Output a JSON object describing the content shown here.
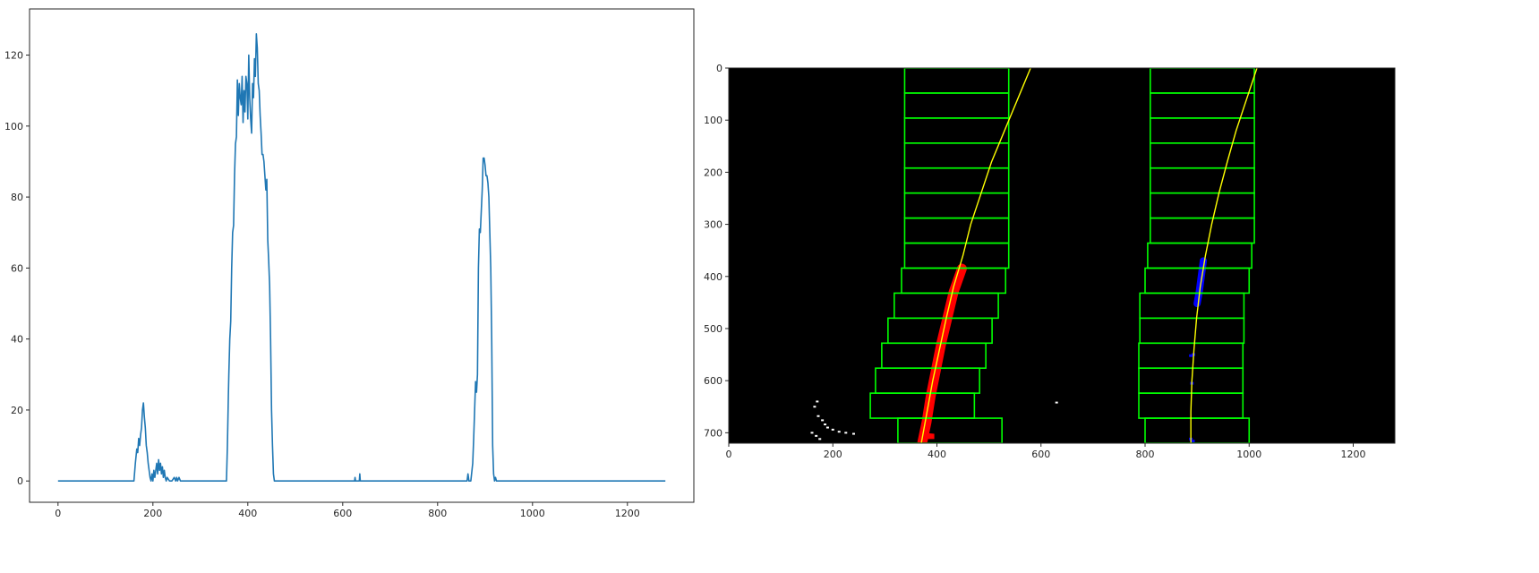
{
  "chart_data": [
    {
      "type": "line",
      "title": "",
      "xlabel": "",
      "ylabel": "",
      "xlim": [
        -60,
        1340
      ],
      "ylim": [
        -6,
        133
      ],
      "xticks": [
        0,
        200,
        400,
        600,
        800,
        1000,
        1200
      ],
      "yticks": [
        0,
        20,
        40,
        60,
        80,
        100,
        120
      ],
      "grid": false,
      "line_color": "#1f77b4",
      "series": [
        {
          "x": [
            0,
            160,
            163,
            166,
            168,
            170,
            172,
            174,
            176,
            178,
            180,
            182,
            184,
            186,
            188,
            190,
            192,
            194,
            196,
            198,
            200,
            202,
            204,
            206,
            208,
            210,
            212,
            214,
            216,
            218,
            220,
            222,
            224,
            226,
            228,
            230,
            235,
            240,
            245,
            248,
            250,
            252,
            255,
            258,
            260,
            300,
            355,
            357,
            359,
            360,
            362,
            364,
            366,
            368,
            370,
            372,
            374,
            376,
            378,
            380,
            382,
            384,
            386,
            388,
            390,
            392,
            394,
            396,
            398,
            400,
            402,
            404,
            406,
            408,
            410,
            412,
            414,
            416,
            418,
            420,
            422,
            424,
            426,
            428,
            430,
            432,
            434,
            436,
            438,
            440,
            442,
            444,
            446,
            448,
            450,
            452,
            454,
            456,
            500,
            600,
            625,
            626,
            627,
            628,
            635,
            636,
            637,
            638,
            700,
            800,
            860,
            862,
            864,
            866,
            870,
            874,
            876,
            878,
            880,
            882,
            884,
            886,
            888,
            890,
            892,
            894,
            896,
            898,
            900,
            902,
            904,
            906,
            908,
            910,
            912,
            914,
            916,
            918,
            920,
            922,
            924,
            926,
            928,
            1000,
            1100,
            1200,
            1280
          ],
          "y": [
            0,
            0,
            5,
            9,
            8,
            12,
            10,
            13,
            15,
            20,
            22,
            18,
            15,
            10,
            8,
            5,
            3,
            1,
            0,
            2,
            0,
            3,
            1,
            3,
            5,
            2,
            6,
            3,
            5,
            2,
            4,
            1,
            3,
            1,
            0,
            1,
            0,
            0,
            1,
            0,
            1,
            0,
            1,
            0,
            0,
            0,
            0,
            10,
            24,
            30,
            40,
            45,
            60,
            70,
            72,
            86,
            95,
            97,
            113,
            103,
            112,
            108,
            106,
            114,
            101,
            110,
            104,
            114,
            112,
            102,
            120,
            108,
            102,
            98,
            112,
            108,
            119,
            114,
            126,
            122,
            112,
            110,
            103,
            98,
            92,
            92,
            90,
            86,
            82,
            85,
            68,
            62,
            55,
            40,
            20,
            10,
            2,
            0,
            0,
            0,
            0,
            1,
            0,
            0,
            0,
            2,
            0,
            0,
            0,
            0,
            0,
            0,
            2,
            0,
            0,
            5,
            12,
            20,
            28,
            25,
            30,
            60,
            71,
            70,
            76,
            82,
            91,
            91,
            89,
            86,
            86,
            84,
            80,
            70,
            60,
            40,
            10,
            2,
            0,
            1,
            0,
            0,
            0,
            0,
            0,
            0,
            0
          ]
        }
      ]
    },
    {
      "type": "image",
      "title": "",
      "xlabel": "",
      "ylabel": "",
      "xlim": [
        0,
        1280
      ],
      "ylim": [
        720,
        0
      ],
      "xticks": [
        0,
        200,
        400,
        600,
        800,
        1000,
        1200
      ],
      "yticks": [
        0,
        100,
        200,
        300,
        400,
        500,
        600,
        700
      ],
      "background_color": "#000000",
      "window_color": "#00ff00",
      "fit_color": "#ffff00",
      "left_lane_color": "#ff0000",
      "right_lane_color": "#0000ff",
      "left_windows": [
        {
          "x1": 338,
          "x2": 538,
          "y1": 0,
          "y2": 48
        },
        {
          "x1": 338,
          "x2": 538,
          "y1": 48,
          "y2": 96
        },
        {
          "x1": 338,
          "x2": 538,
          "y1": 96,
          "y2": 144
        },
        {
          "x1": 338,
          "x2": 538,
          "y1": 144,
          "y2": 192
        },
        {
          "x1": 338,
          "x2": 538,
          "y1": 192,
          "y2": 240
        },
        {
          "x1": 338,
          "x2": 538,
          "y1": 240,
          "y2": 288
        },
        {
          "x1": 338,
          "x2": 538,
          "y1": 288,
          "y2": 336
        },
        {
          "x1": 338,
          "x2": 538,
          "y1": 336,
          "y2": 384
        },
        {
          "x1": 332,
          "x2": 532,
          "y1": 384,
          "y2": 432
        },
        {
          "x1": 318,
          "x2": 518,
          "y1": 432,
          "y2": 480
        },
        {
          "x1": 306,
          "x2": 506,
          "y1": 480,
          "y2": 528
        },
        {
          "x1": 294,
          "x2": 494,
          "y1": 528,
          "y2": 576
        },
        {
          "x1": 282,
          "x2": 482,
          "y1": 576,
          "y2": 624
        },
        {
          "x1": 272,
          "x2": 472,
          "y1": 624,
          "y2": 672
        },
        {
          "x1": 325,
          "x2": 525,
          "y1": 672,
          "y2": 720
        }
      ],
      "right_windows": [
        {
          "x1": 810,
          "x2": 1010,
          "y1": 0,
          "y2": 48
        },
        {
          "x1": 810,
          "x2": 1010,
          "y1": 48,
          "y2": 96
        },
        {
          "x1": 810,
          "x2": 1010,
          "y1": 96,
          "y2": 144
        },
        {
          "x1": 810,
          "x2": 1010,
          "y1": 144,
          "y2": 192
        },
        {
          "x1": 810,
          "x2": 1010,
          "y1": 192,
          "y2": 240
        },
        {
          "x1": 810,
          "x2": 1010,
          "y1": 240,
          "y2": 288
        },
        {
          "x1": 810,
          "x2": 1010,
          "y1": 288,
          "y2": 336
        },
        {
          "x1": 805,
          "x2": 1005,
          "y1": 336,
          "y2": 384
        },
        {
          "x1": 800,
          "x2": 1000,
          "y1": 384,
          "y2": 432
        },
        {
          "x1": 790,
          "x2": 990,
          "y1": 432,
          "y2": 480
        },
        {
          "x1": 790,
          "x2": 990,
          "y1": 480,
          "y2": 528
        },
        {
          "x1": 788,
          "x2": 988,
          "y1": 528,
          "y2": 576
        },
        {
          "x1": 788,
          "x2": 988,
          "y1": 576,
          "y2": 624
        },
        {
          "x1": 788,
          "x2": 988,
          "y1": 624,
          "y2": 672
        },
        {
          "x1": 800,
          "x2": 1000,
          "y1": 672,
          "y2": 720
        }
      ],
      "left_fit_points": [
        {
          "x": 580,
          "y": 0
        },
        {
          "x": 555,
          "y": 60
        },
        {
          "x": 530,
          "y": 120
        },
        {
          "x": 505,
          "y": 180
        },
        {
          "x": 485,
          "y": 240
        },
        {
          "x": 465,
          "y": 300
        },
        {
          "x": 450,
          "y": 360
        },
        {
          "x": 432,
          "y": 420
        },
        {
          "x": 418,
          "y": 480
        },
        {
          "x": 405,
          "y": 540
        },
        {
          "x": 392,
          "y": 600
        },
        {
          "x": 381,
          "y": 660
        },
        {
          "x": 370,
          "y": 720
        }
      ],
      "right_fit_points": [
        {
          "x": 1015,
          "y": 0
        },
        {
          "x": 995,
          "y": 60
        },
        {
          "x": 975,
          "y": 120
        },
        {
          "x": 958,
          "y": 180
        },
        {
          "x": 942,
          "y": 240
        },
        {
          "x": 928,
          "y": 300
        },
        {
          "x": 916,
          "y": 360
        },
        {
          "x": 906,
          "y": 420
        },
        {
          "x": 899,
          "y": 480
        },
        {
          "x": 894,
          "y": 540
        },
        {
          "x": 890,
          "y": 600
        },
        {
          "x": 888,
          "y": 660
        },
        {
          "x": 888,
          "y": 720
        }
      ],
      "left_lane_points": [
        {
          "x": 448,
          "y": 385
        },
        {
          "x": 432,
          "y": 430
        },
        {
          "x": 420,
          "y": 480
        },
        {
          "x": 408,
          "y": 530
        },
        {
          "x": 398,
          "y": 580
        },
        {
          "x": 388,
          "y": 630
        },
        {
          "x": 380,
          "y": 680
        },
        {
          "x": 372,
          "y": 718
        }
      ],
      "left_lane_blob": [
        {
          "x": 375,
          "y": 700
        },
        {
          "x": 395,
          "y": 702
        },
        {
          "x": 395,
          "y": 712
        },
        {
          "x": 375,
          "y": 712
        }
      ],
      "right_lane_points": [
        {
          "x": 912,
          "y": 370
        },
        {
          "x": 908,
          "y": 400
        },
        {
          "x": 904,
          "y": 430
        },
        {
          "x": 900,
          "y": 452
        }
      ],
      "right_lane_specks": [
        {
          "x": 888,
          "y": 552
        },
        {
          "x": 893,
          "y": 550
        },
        {
          "x": 890,
          "y": 605
        },
        {
          "x": 888,
          "y": 712
        },
        {
          "x": 892,
          "y": 716
        }
      ],
      "noise_points": [
        {
          "x": 170,
          "y": 640
        },
        {
          "x": 165,
          "y": 650
        },
        {
          "x": 172,
          "y": 668
        },
        {
          "x": 180,
          "y": 676
        },
        {
          "x": 185,
          "y": 684
        },
        {
          "x": 190,
          "y": 690
        },
        {
          "x": 200,
          "y": 694
        },
        {
          "x": 212,
          "y": 698
        },
        {
          "x": 225,
          "y": 700
        },
        {
          "x": 240,
          "y": 702
        },
        {
          "x": 160,
          "y": 700
        },
        {
          "x": 168,
          "y": 706
        },
        {
          "x": 175,
          "y": 712
        },
        {
          "x": 630,
          "y": 642
        }
      ]
    }
  ]
}
